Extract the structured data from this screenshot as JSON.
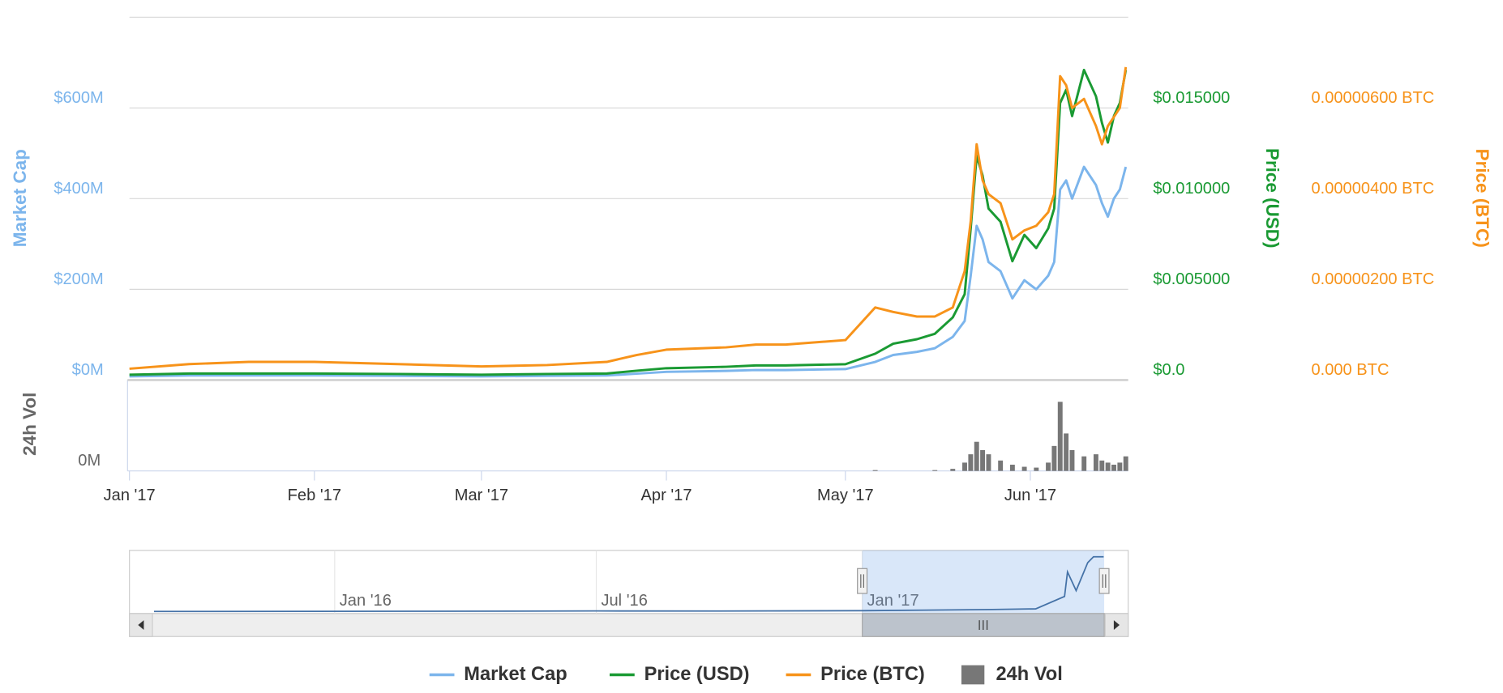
{
  "chart_data": {
    "type": "line",
    "x": [
      0,
      10,
      20,
      31,
      45,
      59,
      70,
      80,
      85,
      90,
      100,
      105,
      110,
      120,
      125,
      128,
      132,
      135,
      138,
      140,
      141,
      142,
      143,
      144,
      146,
      148,
      150,
      152,
      154,
      155,
      156,
      157,
      158,
      160,
      162,
      163,
      164,
      165,
      166,
      167
    ],
    "xlim": [
      0,
      167.4
    ],
    "xticks": [
      {
        "value": 0,
        "label": "Jan '17"
      },
      {
        "value": 31,
        "label": "Feb '17"
      },
      {
        "value": 59,
        "label": "Mar '17"
      },
      {
        "value": 90,
        "label": "Apr '17"
      },
      {
        "value": 120,
        "label": "May '17"
      },
      {
        "value": 151,
        "label": "Jun '17"
      }
    ],
    "y_label": "Market Cap",
    "ylim": [
      0,
      800000000
    ],
    "yticks": [
      {
        "value": 0,
        "label": "$0M"
      },
      {
        "value": 200000000,
        "label": "$200M"
      },
      {
        "value": 400000000,
        "label": "$400M"
      },
      {
        "value": 600000000,
        "label": "$600M"
      }
    ],
    "y2_label": "Price (USD)",
    "y2lim": [
      0,
      0.02
    ],
    "y2ticks": [
      {
        "value": 0,
        "label": "$0.0"
      },
      {
        "value": 0.005,
        "label": "$0.005000"
      },
      {
        "value": 0.01,
        "label": "$0.010000"
      },
      {
        "value": 0.015,
        "label": "$0.015000"
      }
    ],
    "y3_label": "Price (BTC)",
    "y3lim": [
      0,
      8e-06
    ],
    "y3ticks": [
      {
        "value": 0,
        "label": "0.000 BTC"
      },
      {
        "value": 2e-06,
        "label": "0.00000200 BTC"
      },
      {
        "value": 4e-06,
        "label": "0.00000400 BTC"
      },
      {
        "value": 6e-06,
        "label": "0.00000600 BTC"
      }
    ],
    "y4_label": "24h Vol",
    "y4lim": [
      0,
      2000000
    ],
    "y4ticks": [
      {
        "value": 0,
        "label": "0M"
      }
    ],
    "grid": true,
    "legend": "bottom",
    "series": [
      {
        "name": "Market Cap",
        "color": "#7cb5ec",
        "axis": "y",
        "values": [
          8000000,
          10000000,
          10000000,
          10000000,
          9000000,
          8000000,
          9000000,
          10000000,
          14000000,
          18000000,
          20000000,
          22000000,
          22000000,
          24000000,
          40000000,
          55000000,
          62000000,
          70000000,
          95000000,
          130000000,
          230000000,
          340000000,
          310000000,
          260000000,
          240000000,
          180000000,
          220000000,
          200000000,
          230000000,
          260000000,
          420000000,
          440000000,
          400000000,
          470000000,
          430000000,
          390000000,
          360000000,
          400000000,
          420000000,
          470000000
        ]
      },
      {
        "name": "Price (USD)",
        "color": "#1a9a33",
        "axis": "y2",
        "values": [
          0.00029,
          0.00036,
          0.00036,
          0.00036,
          0.00033,
          0.00029,
          0.00033,
          0.00036,
          0.00051,
          0.00065,
          0.00073,
          0.0008,
          0.0008,
          0.00087,
          0.00145,
          0.002,
          0.00225,
          0.00255,
          0.00345,
          0.00473,
          0.00836,
          0.01236,
          0.01127,
          0.00945,
          0.00873,
          0.00655,
          0.008,
          0.00727,
          0.00836,
          0.00945,
          0.01527,
          0.016,
          0.01455,
          0.01709,
          0.01564,
          0.01418,
          0.01309,
          0.01455,
          0.01527,
          0.01709
        ]
      },
      {
        "name": "Price (BTC)",
        "color": "#f7931a",
        "axis": "y3",
        "values": [
          2.5e-07,
          3.5e-07,
          4e-07,
          4e-07,
          3.5e-07,
          3e-07,
          3.3e-07,
          4e-07,
          5.5e-07,
          6.7e-07,
          7.2e-07,
          7.8e-07,
          7.8e-07,
          8.8e-07,
          1.6e-06,
          1.5e-06,
          1.4e-06,
          1.4e-06,
          1.6e-06,
          2.4e-06,
          3.5e-06,
          5.2e-06,
          4.4e-06,
          4.1e-06,
          3.9e-06,
          3.1e-06,
          3.3e-06,
          3.4e-06,
          3.7e-06,
          4.1e-06,
          6.7e-06,
          6.5e-06,
          6e-06,
          6.2e-06,
          5.6e-06,
          5.2e-06,
          5.6e-06,
          5.8e-06,
          6e-06,
          6.9e-06
        ]
      },
      {
        "name": "24h Vol",
        "color": "#777777",
        "axis": "y4",
        "type": "column",
        "values": [
          0,
          0,
          0,
          0,
          0,
          0,
          0,
          0,
          0,
          0,
          0,
          0,
          0,
          0,
          20000,
          0,
          0,
          20000,
          50000,
          200000,
          400000,
          700000,
          500000,
          400000,
          250000,
          150000,
          100000,
          80000,
          200000,
          600000,
          1660000,
          900000,
          500000,
          350000,
          400000,
          250000,
          200000,
          150000,
          200000,
          350000
        ]
      }
    ],
    "navigator": {
      "x": [
        -490,
        -300,
        -184,
        -100,
        0,
        90,
        120,
        140,
        142,
        148,
        156,
        160,
        167
      ],
      "values": [
        2000000,
        3000000,
        6000000,
        5000000,
        8000000,
        18000000,
        24000000,
        130000000,
        340000000,
        180000000,
        420000000,
        470000000,
        470000000
      ],
      "color": "#4572a7",
      "xlim": [
        -507,
        184
      ],
      "ylim": [
        0,
        500000000
      ],
      "xticks": [
        {
          "value": -365,
          "label": "Jan '16"
        },
        {
          "value": -184,
          "label": "Jul '16"
        },
        {
          "value": 0,
          "label": "Jan '17"
        }
      ],
      "selection": [
        0,
        167.4
      ]
    }
  }
}
